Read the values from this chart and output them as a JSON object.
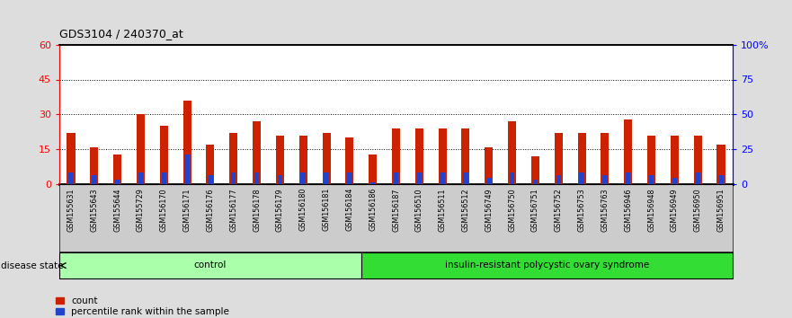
{
  "title": "GDS3104 / 240370_at",
  "samples": [
    "GSM155631",
    "GSM155643",
    "GSM155644",
    "GSM155729",
    "GSM156170",
    "GSM156171",
    "GSM156176",
    "GSM156177",
    "GSM156178",
    "GSM156179",
    "GSM156180",
    "GSM156181",
    "GSM156184",
    "GSM156186",
    "GSM156187",
    "GSM156510",
    "GSM156511",
    "GSM156512",
    "GSM156749",
    "GSM156750",
    "GSM156751",
    "GSM156752",
    "GSM156753",
    "GSM156763",
    "GSM156946",
    "GSM156948",
    "GSM156949",
    "GSM156950",
    "GSM156951"
  ],
  "count_values": [
    22,
    16,
    13,
    30,
    25,
    36,
    17,
    22,
    27,
    21,
    21,
    22,
    20,
    13,
    24,
    24,
    24,
    24,
    16,
    27,
    12,
    22,
    22,
    22,
    28,
    21,
    21,
    21,
    17
  ],
  "percentile_values": [
    5,
    4,
    2,
    5,
    5,
    13,
    4,
    5,
    5,
    4,
    5,
    5,
    5,
    1,
    5,
    5,
    5,
    5,
    3,
    5,
    2,
    4,
    5,
    4,
    5,
    4,
    3,
    5,
    4
  ],
  "control_count": 13,
  "groups": [
    {
      "label": "control",
      "start": 0,
      "end": 13,
      "color": "#aaffaa"
    },
    {
      "label": "insulin-resistant polycystic ovary syndrome",
      "start": 13,
      "end": 29,
      "color": "#33dd33"
    }
  ],
  "bar_color": "#cc2200",
  "percentile_color": "#2244cc",
  "ylim_left": [
    0,
    60
  ],
  "ylim_right": [
    0,
    100
  ],
  "yticks_left": [
    0,
    15,
    30,
    45,
    60
  ],
  "yticks_right": [
    0,
    25,
    50,
    75,
    100
  ],
  "ytick_labels_right": [
    "0",
    "25",
    "50",
    "75",
    "100%"
  ],
  "dotted_lines": [
    15,
    30,
    45
  ],
  "bg_color": "#dddddd",
  "plot_bg": "#ffffff",
  "xtick_bg": "#cccccc"
}
